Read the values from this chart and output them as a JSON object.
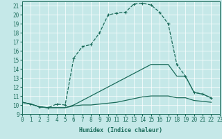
{
  "xlabel": "Humidex (Indice chaleur)",
  "bg_color": "#c5e8e8",
  "line_color": "#1a6b5a",
  "grid_color": "#ffffff",
  "xlim": [
    0,
    23
  ],
  "ylim": [
    9,
    21.5
  ],
  "xticks": [
    0,
    1,
    2,
    3,
    4,
    5,
    6,
    7,
    8,
    9,
    10,
    11,
    12,
    13,
    14,
    15,
    16,
    17,
    18,
    19,
    20,
    21,
    22,
    23
  ],
  "yticks": [
    9,
    10,
    11,
    12,
    13,
    14,
    15,
    16,
    17,
    18,
    19,
    20,
    21
  ],
  "curve_main_x": [
    0,
    1,
    2,
    3,
    4,
    5,
    6,
    7,
    8,
    9,
    10,
    11,
    12,
    13,
    14,
    15,
    16,
    17,
    18,
    19,
    20,
    21,
    22
  ],
  "curve_main_y": [
    10.3,
    10.1,
    9.8,
    9.7,
    10.1,
    10.0,
    15.2,
    16.5,
    16.7,
    18.0,
    20.0,
    20.2,
    20.3,
    21.2,
    21.3,
    21.1,
    20.3,
    19.0,
    14.5,
    13.2,
    11.4,
    11.2,
    10.8
  ],
  "curve_upper_x": [
    0,
    1,
    2,
    3,
    4,
    5,
    6,
    7,
    8,
    9,
    10,
    11,
    12,
    13,
    14,
    15,
    16,
    17,
    18,
    19,
    20,
    21,
    22
  ],
  "curve_upper_y": [
    10.3,
    10.1,
    9.8,
    9.7,
    9.7,
    9.7,
    10.0,
    10.5,
    11.0,
    11.5,
    12.0,
    12.5,
    13.0,
    13.5,
    14.0,
    14.5,
    14.5,
    14.5,
    13.2,
    13.2,
    11.4,
    11.2,
    10.8
  ],
  "curve_lower_x": [
    0,
    1,
    2,
    3,
    4,
    5,
    6,
    7,
    8,
    9,
    10,
    11,
    12,
    13,
    14,
    15,
    16,
    17,
    18,
    19,
    20,
    21,
    22
  ],
  "curve_lower_y": [
    10.3,
    10.1,
    9.8,
    9.7,
    9.7,
    9.7,
    9.9,
    10.0,
    10.0,
    10.1,
    10.2,
    10.3,
    10.5,
    10.7,
    10.9,
    11.0,
    11.0,
    11.0,
    10.8,
    10.8,
    10.5,
    10.4,
    10.3
  ],
  "tick_fontsize": 5.5,
  "xlabel_fontsize": 6.0,
  "marker": "+",
  "markersize": 3.5,
  "linewidth": 0.9
}
